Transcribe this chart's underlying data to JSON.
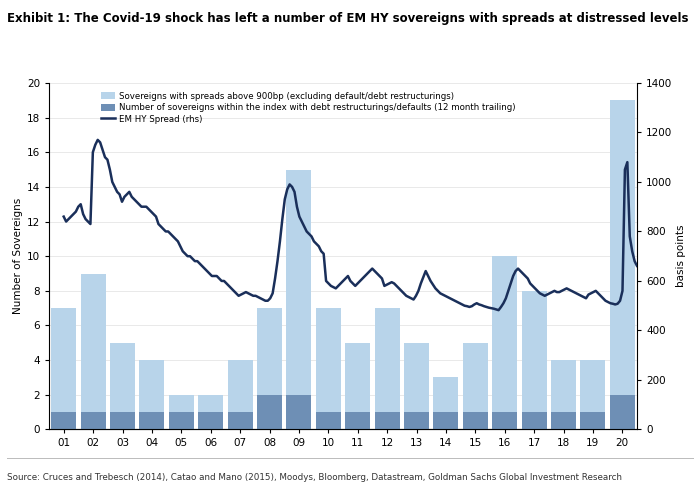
{
  "title": "Exhibit 1: The Covid-19 shock has left a number of EM HY sovereigns with spreads at distressed levels",
  "source_text": "Source: Cruces and Trebesch (2014), Catao and Mano (2015), Moodys, Bloomberg, Datastream, Goldman Sachs Global Investment Research",
  "ylabel_left": "Number of Sovereigns",
  "ylabel_right": "basis points",
  "ylim_left": [
    0,
    20
  ],
  "ylim_right": [
    0,
    1400
  ],
  "yticks_left": [
    0,
    2,
    4,
    6,
    8,
    10,
    12,
    14,
    16,
    18,
    20
  ],
  "yticks_right": [
    0,
    200,
    400,
    600,
    800,
    1000,
    1200,
    1400
  ],
  "xtick_labels": [
    "01",
    "02",
    "03",
    "04",
    "05",
    "06",
    "07",
    "08",
    "09",
    "10",
    "11",
    "12",
    "13",
    "14",
    "15",
    "16",
    "17",
    "18",
    "19",
    "20"
  ],
  "bar_light_color": "#b8d4ea",
  "bar_dark_color": "#6e8fb5",
  "line_color": "#1a2f5a",
  "background_color": "#ffffff",
  "legend_labels": [
    "Sovereigns with spreads above 900bp (excluding default/debt restructurings)",
    "Number of sovereigns within the index with debt restructurings/defaults (12 month trailing)",
    "EM HY Spread (rhs)"
  ],
  "bar_light_annual": [
    7,
    9,
    5,
    4,
    2,
    2,
    4,
    7,
    15,
    7,
    5,
    7,
    5,
    3,
    5,
    10,
    8,
    4,
    4,
    19
  ],
  "bar_dark_annual": [
    1,
    1,
    1,
    1,
    1,
    1,
    1,
    2,
    2,
    1,
    1,
    1,
    1,
    1,
    1,
    1,
    1,
    1,
    1,
    2
  ],
  "spread_monthly": [
    860,
    840,
    850,
    860,
    870,
    880,
    900,
    910,
    870,
    850,
    840,
    830,
    1120,
    1150,
    1170,
    1160,
    1130,
    1100,
    1090,
    1050,
    1000,
    980,
    960,
    950,
    920,
    940,
    950,
    960,
    940,
    930,
    920,
    910,
    900,
    900,
    900,
    890,
    880,
    870,
    860,
    830,
    820,
    810,
    800,
    800,
    790,
    780,
    770,
    760,
    740,
    720,
    710,
    700,
    700,
    690,
    680,
    680,
    670,
    660,
    650,
    640,
    630,
    620,
    620,
    620,
    610,
    600,
    600,
    590,
    580,
    570,
    560,
    550,
    540,
    545,
    550,
    555,
    550,
    545,
    540,
    540,
    535,
    530,
    525,
    520,
    520,
    530,
    550,
    610,
    680,
    760,
    850,
    930,
    970,
    990,
    980,
    960,
    900,
    860,
    840,
    820,
    800,
    790,
    780,
    760,
    750,
    740,
    720,
    710,
    600,
    590,
    580,
    575,
    570,
    580,
    590,
    600,
    610,
    620,
    600,
    590,
    580,
    590,
    600,
    610,
    620,
    630,
    640,
    650,
    640,
    630,
    620,
    610,
    580,
    585,
    590,
    595,
    590,
    580,
    570,
    560,
    550,
    540,
    535,
    530,
    525,
    540,
    560,
    590,
    615,
    640,
    620,
    600,
    585,
    570,
    560,
    550,
    545,
    540,
    535,
    530,
    525,
    520,
    515,
    510,
    505,
    500,
    498,
    495,
    498,
    505,
    510,
    505,
    502,
    498,
    495,
    492,
    490,
    488,
    485,
    482,
    495,
    510,
    530,
    560,
    590,
    620,
    640,
    650,
    640,
    630,
    620,
    610,
    590,
    580,
    570,
    560,
    550,
    545,
    540,
    545,
    550,
    555,
    560,
    555,
    555,
    560,
    565,
    570,
    565,
    560,
    555,
    550,
    545,
    540,
    535,
    530,
    545,
    550,
    555,
    560,
    550,
    540,
    530,
    520,
    515,
    510,
    508,
    505,
    508,
    520,
    560,
    1050,
    1080,
    780,
    720,
    680,
    660,
    650,
    660,
    680
  ],
  "n_months": 240
}
